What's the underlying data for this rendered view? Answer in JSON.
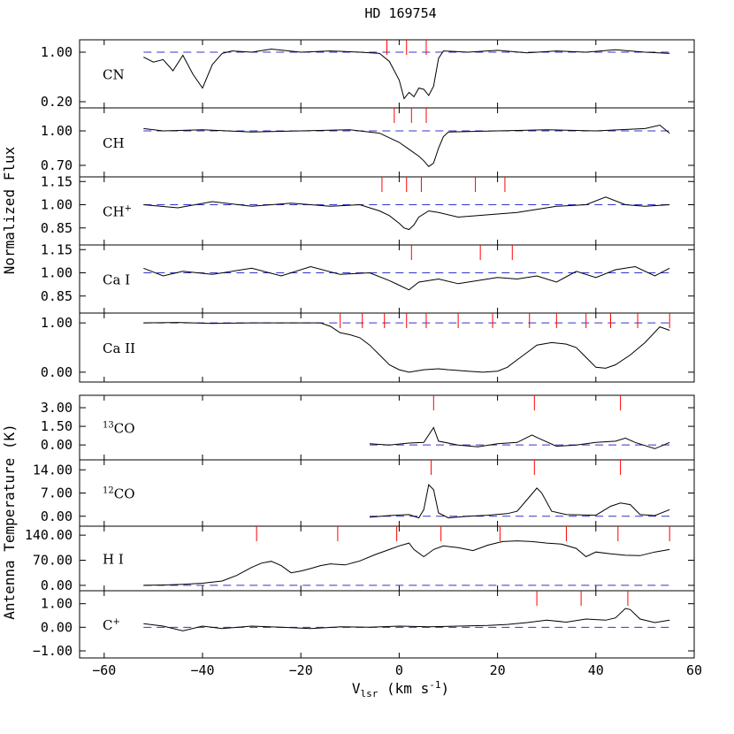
{
  "chart_data": {
    "type": "line",
    "title": "HD 169754",
    "xlabel": "V",
    "xlabel_sub": "lsr",
    "xlabel_unit": " (km s",
    "xlabel_exp": "-1",
    "xlabel_close": ")",
    "ylabel_top": "Normalized Flux",
    "ylabel_bottom": "Antenna Temperature (K)",
    "xlim": [
      -65,
      60
    ],
    "xticks": [
      -60,
      -40,
      -20,
      0,
      20,
      40,
      60
    ],
    "xtick_labels": [
      "−60",
      "−40",
      "−20",
      "0",
      "20",
      "40",
      "60"
    ],
    "grid": false,
    "colors": {
      "spectrum": "#000000",
      "continuum": "#3333cc",
      "markers": "#ff0000"
    },
    "panels": [
      {
        "label": "CN",
        "sup": "",
        "label_suffix": "",
        "group": "optical",
        "ylim": [
          0.1,
          1.2
        ],
        "yticks": [
          0.2,
          1.0
        ],
        "ytick_labels": [
          "0.20",
          "1.00"
        ],
        "baseline": 1.0,
        "markers": [
          -2.5,
          1.5,
          5.5
        ],
        "points": [
          [
            -52,
            0.92
          ],
          [
            -50,
            0.84
          ],
          [
            -48,
            0.88
          ],
          [
            -46,
            0.7
          ],
          [
            -44,
            0.95
          ],
          [
            -42,
            0.65
          ],
          [
            -40,
            0.42
          ],
          [
            -38,
            0.8
          ],
          [
            -36,
            0.98
          ],
          [
            -34,
            1.02
          ],
          [
            -30,
            1.0
          ],
          [
            -26,
            1.05
          ],
          [
            -20,
            1.0
          ],
          [
            -14,
            1.02
          ],
          [
            -8,
            1.0
          ],
          [
            -4,
            0.98
          ],
          [
            -2,
            0.85
          ],
          [
            0,
            0.55
          ],
          [
            1,
            0.25
          ],
          [
            2,
            0.35
          ],
          [
            3,
            0.28
          ],
          [
            4,
            0.42
          ],
          [
            5,
            0.4
          ],
          [
            6,
            0.3
          ],
          [
            7,
            0.45
          ],
          [
            8,
            0.9
          ],
          [
            9,
            1.02
          ],
          [
            14,
            1.0
          ],
          [
            20,
            1.03
          ],
          [
            26,
            0.99
          ],
          [
            32,
            1.02
          ],
          [
            38,
            1.0
          ],
          [
            44,
            1.04
          ],
          [
            50,
            1.0
          ],
          [
            55,
            0.98
          ]
        ]
      },
      {
        "label": "CH",
        "sup": "",
        "label_suffix": "",
        "group": "optical",
        "ylim": [
          0.6,
          1.2
        ],
        "yticks": [
          0.7,
          1.0
        ],
        "ytick_labels": [
          "0.70",
          "1.00"
        ],
        "baseline": 1.0,
        "markers": [
          -1,
          2.5,
          5.5
        ],
        "points": [
          [
            -52,
            1.02
          ],
          [
            -48,
            1.0
          ],
          [
            -40,
            1.01
          ],
          [
            -30,
            0.99
          ],
          [
            -20,
            1.0
          ],
          [
            -10,
            1.01
          ],
          [
            -4,
            0.98
          ],
          [
            -2,
            0.94
          ],
          [
            0,
            0.9
          ],
          [
            2,
            0.84
          ],
          [
            4,
            0.78
          ],
          [
            5,
            0.74
          ],
          [
            6,
            0.69
          ],
          [
            7,
            0.72
          ],
          [
            8,
            0.85
          ],
          [
            9,
            0.95
          ],
          [
            10,
            0.99
          ],
          [
            20,
            1.0
          ],
          [
            30,
            1.01
          ],
          [
            40,
            1.0
          ],
          [
            50,
            1.02
          ],
          [
            53,
            1.05
          ],
          [
            55,
            0.98
          ]
        ]
      },
      {
        "label": "CH",
        "sup": "+",
        "label_suffix": "",
        "group": "optical",
        "ylim": [
          0.74,
          1.18
        ],
        "yticks": [
          0.85,
          1.0,
          1.15
        ],
        "ytick_labels": [
          "0.85",
          "1.00",
          "1.15"
        ],
        "baseline": 1.0,
        "markers": [
          -3.5,
          1.5,
          4.5,
          15.5,
          21.5
        ],
        "points": [
          [
            -52,
            1.0
          ],
          [
            -45,
            0.98
          ],
          [
            -38,
            1.02
          ],
          [
            -30,
            0.99
          ],
          [
            -22,
            1.01
          ],
          [
            -14,
            0.99
          ],
          [
            -8,
            1.0
          ],
          [
            -4,
            0.96
          ],
          [
            -2,
            0.93
          ],
          [
            0,
            0.88
          ],
          [
            1,
            0.85
          ],
          [
            2,
            0.84
          ],
          [
            3,
            0.87
          ],
          [
            4,
            0.92
          ],
          [
            6,
            0.96
          ],
          [
            8,
            0.95
          ],
          [
            12,
            0.92
          ],
          [
            16,
            0.93
          ],
          [
            20,
            0.94
          ],
          [
            24,
            0.95
          ],
          [
            28,
            0.97
          ],
          [
            32,
            0.99
          ],
          [
            38,
            1.0
          ],
          [
            42,
            1.05
          ],
          [
            46,
            1.0
          ],
          [
            50,
            0.99
          ],
          [
            55,
            1.0
          ]
        ]
      },
      {
        "label": "Ca",
        "sup": "",
        "label_suffix": " I",
        "group": "optical",
        "ylim": [
          0.74,
          1.18
        ],
        "yticks": [
          0.85,
          1.0,
          1.15
        ],
        "ytick_labels": [
          "0.85",
          "1.00",
          "1.15"
        ],
        "baseline": 1.0,
        "markers": [
          2.5,
          16.5,
          23
        ],
        "points": [
          [
            -52,
            1.03
          ],
          [
            -48,
            0.98
          ],
          [
            -44,
            1.01
          ],
          [
            -38,
            0.99
          ],
          [
            -30,
            1.03
          ],
          [
            -24,
            0.98
          ],
          [
            -18,
            1.04
          ],
          [
            -12,
            0.99
          ],
          [
            -6,
            1.0
          ],
          [
            -2,
            0.95
          ],
          [
            0,
            0.92
          ],
          [
            2,
            0.89
          ],
          [
            4,
            0.94
          ],
          [
            8,
            0.96
          ],
          [
            12,
            0.93
          ],
          [
            16,
            0.95
          ],
          [
            20,
            0.97
          ],
          [
            24,
            0.96
          ],
          [
            28,
            0.98
          ],
          [
            32,
            0.94
          ],
          [
            36,
            1.01
          ],
          [
            40,
            0.97
          ],
          [
            44,
            1.02
          ],
          [
            48,
            1.04
          ],
          [
            52,
            0.98
          ],
          [
            55,
            1.03
          ]
        ]
      },
      {
        "label": "Ca",
        "sup": "",
        "label_suffix": " II",
        "group": "optical",
        "ylim": [
          -0.2,
          1.2
        ],
        "yticks": [
          0.0,
          1.0
        ],
        "ytick_labels": [
          "0.00",
          "1.00"
        ],
        "baseline": 1.0,
        "markers": [
          -12,
          -7.5,
          -3,
          1.5,
          5.5,
          12,
          19,
          26.5,
          32,
          38,
          43,
          48.5,
          55
        ],
        "points": [
          [
            -52,
            1.0
          ],
          [
            -45,
            1.01
          ],
          [
            -38,
            0.99
          ],
          [
            -30,
            1.0
          ],
          [
            -22,
            1.0
          ],
          [
            -16,
            1.0
          ],
          [
            -14,
            0.93
          ],
          [
            -12,
            0.8
          ],
          [
            -10,
            0.76
          ],
          [
            -8,
            0.7
          ],
          [
            -6,
            0.55
          ],
          [
            -4,
            0.35
          ],
          [
            -2,
            0.15
          ],
          [
            0,
            0.05
          ],
          [
            2,
            0.0
          ],
          [
            5,
            0.05
          ],
          [
            8,
            0.07
          ],
          [
            10,
            0.05
          ],
          [
            14,
            0.02
          ],
          [
            17,
            0.0
          ],
          [
            20,
            0.02
          ],
          [
            22,
            0.1
          ],
          [
            24,
            0.25
          ],
          [
            26,
            0.4
          ],
          [
            28,
            0.55
          ],
          [
            31,
            0.6
          ],
          [
            34,
            0.57
          ],
          [
            36,
            0.5
          ],
          [
            38,
            0.3
          ],
          [
            40,
            0.1
          ],
          [
            42,
            0.08
          ],
          [
            44,
            0.15
          ],
          [
            47,
            0.35
          ],
          [
            50,
            0.6
          ],
          [
            53,
            0.92
          ],
          [
            55,
            0.85
          ]
        ]
      },
      {
        "label": "CO",
        "sup": "13",
        "label_suffix": "",
        "group": "radio",
        "ylim": [
          -1.2,
          4.0
        ],
        "yticks": [
          0.0,
          1.5,
          3.0
        ],
        "ytick_labels": [
          "0.00",
          "1.50",
          "3.00"
        ],
        "baseline": 0.0,
        "markers": [
          7,
          27.5,
          45
        ],
        "points": [
          [
            -6,
            0.1
          ],
          [
            -2,
            0.0
          ],
          [
            2,
            0.15
          ],
          [
            5,
            0.2
          ],
          [
            7,
            1.4
          ],
          [
            8,
            0.3
          ],
          [
            12,
            0.0
          ],
          [
            16,
            -0.15
          ],
          [
            20,
            0.1
          ],
          [
            24,
            0.2
          ],
          [
            27,
            0.8
          ],
          [
            28,
            0.6
          ],
          [
            32,
            -0.1
          ],
          [
            36,
            0.0
          ],
          [
            40,
            0.2
          ],
          [
            44,
            0.3
          ],
          [
            46,
            0.55
          ],
          [
            48,
            0.2
          ],
          [
            52,
            -0.3
          ],
          [
            55,
            0.2
          ]
        ]
      },
      {
        "label": "CO",
        "sup": "12",
        "label_suffix": "",
        "group": "radio",
        "ylim": [
          -3.0,
          17.0
        ],
        "yticks": [
          0.0,
          7.0,
          14.0
        ],
        "ytick_labels": [
          "0.00",
          "7.00",
          "14.00"
        ],
        "baseline": 0.0,
        "markers": [
          6.5,
          27.5,
          45
        ],
        "points": [
          [
            -6,
            -0.3
          ],
          [
            -2,
            0.2
          ],
          [
            2,
            0.5
          ],
          [
            4,
            -0.5
          ],
          [
            5,
            2.0
          ],
          [
            6,
            9.5
          ],
          [
            7,
            8.0
          ],
          [
            8,
            1.0
          ],
          [
            10,
            -0.5
          ],
          [
            14,
            0.0
          ],
          [
            18,
            0.3
          ],
          [
            22,
            0.8
          ],
          [
            24,
            1.5
          ],
          [
            26,
            5.0
          ],
          [
            28,
            8.5
          ],
          [
            29,
            7.0
          ],
          [
            31,
            1.5
          ],
          [
            34,
            0.5
          ],
          [
            40,
            0.3
          ],
          [
            43,
            3.0
          ],
          [
            45,
            4.0
          ],
          [
            47,
            3.5
          ],
          [
            49,
            0.5
          ],
          [
            52,
            0.2
          ],
          [
            55,
            2.0
          ]
        ]
      },
      {
        "label": "H",
        "sup": "",
        "label_suffix": " I",
        "group": "radio",
        "ylim": [
          -15,
          165
        ],
        "yticks": [
          0,
          70,
          140
        ],
        "ytick_labels": [
          "0.00",
          "70.00",
          "140.00"
        ],
        "baseline": 0.0,
        "markers": [
          -29,
          -12.5,
          -0.5,
          8.5,
          20.5,
          34,
          44.5,
          55
        ],
        "points": [
          [
            -52,
            0
          ],
          [
            -48,
            1
          ],
          [
            -44,
            3
          ],
          [
            -40,
            6
          ],
          [
            -36,
            12
          ],
          [
            -33,
            28
          ],
          [
            -30,
            50
          ],
          [
            -28,
            62
          ],
          [
            -26,
            67
          ],
          [
            -24,
            55
          ],
          [
            -22,
            35
          ],
          [
            -20,
            40
          ],
          [
            -18,
            47
          ],
          [
            -16,
            55
          ],
          [
            -14,
            60
          ],
          [
            -11,
            57
          ],
          [
            -8,
            68
          ],
          [
            -5,
            85
          ],
          [
            -2,
            100
          ],
          [
            0,
            110
          ],
          [
            2,
            118
          ],
          [
            3,
            100
          ],
          [
            5,
            80
          ],
          [
            7,
            100
          ],
          [
            9,
            110
          ],
          [
            12,
            105
          ],
          [
            15,
            97
          ],
          [
            18,
            112
          ],
          [
            21,
            122
          ],
          [
            24,
            124
          ],
          [
            27,
            122
          ],
          [
            30,
            118
          ],
          [
            33,
            115
          ],
          [
            36,
            103
          ],
          [
            38,
            80
          ],
          [
            40,
            93
          ],
          [
            43,
            88
          ],
          [
            46,
            84
          ],
          [
            49,
            83
          ],
          [
            52,
            93
          ],
          [
            55,
            100
          ]
        ]
      },
      {
        "label": "C",
        "sup": "+",
        "label_suffix": "",
        "group": "radio",
        "ylim": [
          -1.3,
          1.55
        ],
        "yticks": [
          -1.0,
          0.0,
          1.0
        ],
        "ytick_labels": [
          "−1.00",
          "0.00",
          "1.00"
        ],
        "baseline": 0.0,
        "markers": [
          28,
          37,
          46.5
        ],
        "points": [
          [
            -52,
            0.15
          ],
          [
            -48,
            0.05
          ],
          [
            -44,
            -0.15
          ],
          [
            -40,
            0.05
          ],
          [
            -36,
            -0.05
          ],
          [
            -30,
            0.05
          ],
          [
            -24,
            0.0
          ],
          [
            -18,
            -0.05
          ],
          [
            -12,
            0.02
          ],
          [
            -6,
            0.0
          ],
          [
            0,
            0.05
          ],
          [
            6,
            0.02
          ],
          [
            12,
            0.05
          ],
          [
            18,
            0.08
          ],
          [
            22,
            0.12
          ],
          [
            26,
            0.2
          ],
          [
            30,
            0.3
          ],
          [
            34,
            0.22
          ],
          [
            38,
            0.35
          ],
          [
            42,
            0.3
          ],
          [
            44,
            0.4
          ],
          [
            46,
            0.8
          ],
          [
            47,
            0.75
          ],
          [
            49,
            0.35
          ],
          [
            52,
            0.2
          ],
          [
            55,
            0.3
          ]
        ]
      }
    ]
  }
}
